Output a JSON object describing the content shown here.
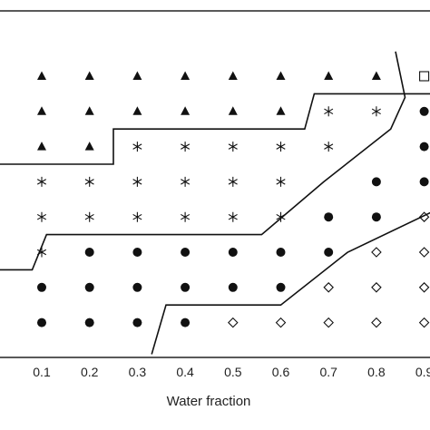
{
  "chart_data": {
    "type": "scatter",
    "title": "",
    "xlabel": "Water fraction",
    "ylabel": "",
    "x_ticks": [
      "0.1",
      "0.2",
      "0.3",
      "0.4",
      "0.5",
      "0.6",
      "0.7",
      "0.8",
      "0.9"
    ],
    "xlim": [
      0.0,
      0.92
    ],
    "ylim": [
      0.5,
      8.5
    ],
    "grid": false,
    "legend": "none",
    "series": [
      {
        "marker": "filled-triangle",
        "points": [
          [
            0.1,
            8
          ],
          [
            0.2,
            8
          ],
          [
            0.3,
            8
          ],
          [
            0.4,
            8
          ],
          [
            0.5,
            8
          ],
          [
            0.6,
            8
          ],
          [
            0.7,
            8
          ],
          [
            0.8,
            8
          ],
          [
            0.1,
            7
          ],
          [
            0.2,
            7
          ],
          [
            0.3,
            7
          ],
          [
            0.4,
            7
          ],
          [
            0.5,
            7
          ],
          [
            0.6,
            7
          ],
          [
            0.1,
            6
          ],
          [
            0.2,
            6
          ]
        ]
      },
      {
        "marker": "asterisk",
        "points": [
          [
            0.7,
            7
          ],
          [
            0.8,
            7
          ],
          [
            0.3,
            6
          ],
          [
            0.4,
            6
          ],
          [
            0.5,
            6
          ],
          [
            0.6,
            6
          ],
          [
            0.7,
            6
          ],
          [
            0.1,
            5
          ],
          [
            0.2,
            5
          ],
          [
            0.3,
            5
          ],
          [
            0.4,
            5
          ],
          [
            0.5,
            5
          ],
          [
            0.6,
            5
          ],
          [
            0.1,
            4
          ],
          [
            0.2,
            4
          ],
          [
            0.3,
            4
          ],
          [
            0.4,
            4
          ],
          [
            0.5,
            4
          ],
          [
            0.6,
            4
          ],
          [
            0.1,
            3
          ]
        ]
      },
      {
        "marker": "filled-circle",
        "points": [
          [
            0.9,
            7
          ],
          [
            0.9,
            6
          ],
          [
            0.8,
            5
          ],
          [
            0.9,
            5
          ],
          [
            0.7,
            4
          ],
          [
            0.8,
            4
          ],
          [
            0.2,
            3
          ],
          [
            0.3,
            3
          ],
          [
            0.4,
            3
          ],
          [
            0.5,
            3
          ],
          [
            0.6,
            3
          ],
          [
            0.7,
            3
          ],
          [
            0.1,
            2
          ],
          [
            0.2,
            2
          ],
          [
            0.3,
            2
          ],
          [
            0.4,
            2
          ],
          [
            0.5,
            2
          ],
          [
            0.6,
            2
          ],
          [
            0.1,
            1
          ],
          [
            0.2,
            1
          ],
          [
            0.3,
            1
          ],
          [
            0.4,
            1
          ]
        ]
      },
      {
        "marker": "open-diamond",
        "points": [
          [
            0.9,
            4
          ],
          [
            0.8,
            3
          ],
          [
            0.9,
            3
          ],
          [
            0.7,
            2
          ],
          [
            0.8,
            2
          ],
          [
            0.9,
            2
          ],
          [
            0.5,
            1
          ],
          [
            0.6,
            1
          ],
          [
            0.7,
            1
          ],
          [
            0.8,
            1
          ],
          [
            0.9,
            1
          ]
        ]
      },
      {
        "marker": "open-square",
        "points": [
          [
            0.9,
            8
          ]
        ]
      }
    ],
    "boundaries": [
      [
        [
          -0.1,
          5.5
        ],
        [
          0.25,
          5.5
        ],
        [
          0.25,
          6.5
        ],
        [
          0.65,
          6.5
        ],
        [
          0.67,
          7.5
        ],
        [
          0.95,
          7.5
        ]
      ],
      [
        [
          -0.1,
          2.5
        ],
        [
          0.08,
          2.5
        ],
        [
          0.11,
          3.5
        ],
        [
          0.56,
          3.5
        ],
        [
          0.69,
          5.0
        ],
        [
          0.83,
          6.5
        ],
        [
          0.86,
          7.4
        ],
        [
          0.84,
          8.7
        ]
      ],
      [
        [
          0.33,
          0.1
        ],
        [
          0.36,
          1.5
        ],
        [
          0.6,
          1.5
        ],
        [
          0.74,
          3.0
        ],
        [
          0.94,
          4.3
        ]
      ]
    ],
    "colors": {
      "marker": "#111111",
      "line": "#111111",
      "frame": "#222222"
    }
  }
}
